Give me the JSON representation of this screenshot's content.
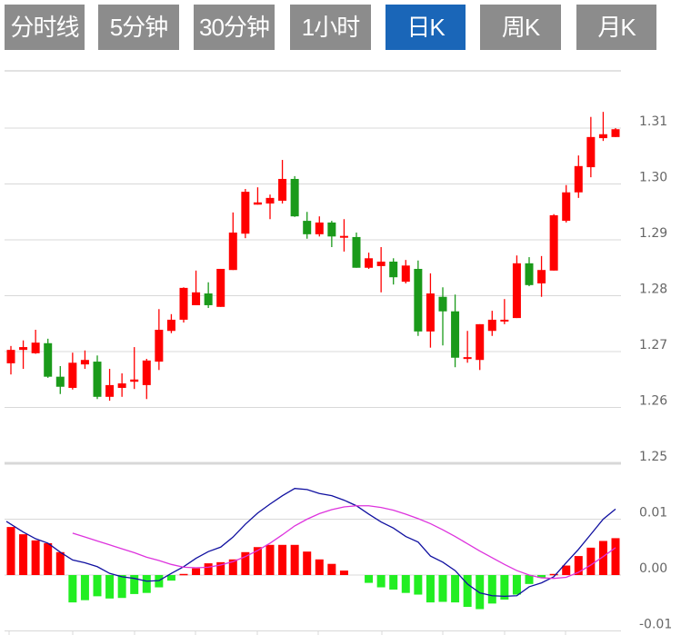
{
  "tabs": [
    {
      "label": "分时线",
      "active": false
    },
    {
      "label": "5分钟",
      "active": false
    },
    {
      "label": "30分钟",
      "active": false
    },
    {
      "label": "1小时",
      "active": false
    },
    {
      "label": "日K",
      "active": true
    },
    {
      "label": "周K",
      "active": false
    },
    {
      "label": "月K",
      "active": false
    }
  ],
  "colors": {
    "tab_bg": "#8c8c8c",
    "tab_active_bg": "#1a66b8",
    "up": "#ff0000",
    "down": "#1a9a1a",
    "hist_up": "#ff0000",
    "hist_down": "#22ee22",
    "dif": "#1010a0",
    "dea": "#dd33dd",
    "grid": "#d8d8d8"
  },
  "chart_data": [
    {
      "type": "candlestick",
      "ylim": [
        1.25,
        1.32
      ],
      "yticks": [
        "1.31",
        "1.30",
        "1.29",
        "1.28",
        "1.27",
        "1.26",
        "1.25"
      ],
      "grid": true,
      "ohlc": [
        [
          1.2679,
          1.271,
          1.2659,
          1.2703
        ],
        [
          1.2703,
          1.272,
          1.2669,
          1.2708
        ],
        [
          1.2697,
          1.2739,
          1.2696,
          1.2716
        ],
        [
          1.2715,
          1.2723,
          1.2653,
          1.2655
        ],
        [
          1.2655,
          1.2674,
          1.2624,
          1.2637
        ],
        [
          1.2635,
          1.2698,
          1.2632,
          1.268
        ],
        [
          1.2677,
          1.2702,
          1.2669,
          1.2685
        ],
        [
          1.2682,
          1.2693,
          1.2615,
          1.2619
        ],
        [
          1.2619,
          1.2669,
          1.2612,
          1.264
        ],
        [
          1.2635,
          1.2661,
          1.2619,
          1.2643
        ],
        [
          1.2646,
          1.2708,
          1.2633,
          1.265
        ],
        [
          1.264,
          1.2687,
          1.2615,
          1.2684
        ],
        [
          1.2682,
          1.2776,
          1.2667,
          1.2739
        ],
        [
          1.2737,
          1.2767,
          1.2733,
          1.2757
        ],
        [
          1.2757,
          1.2815,
          1.2752,
          1.2814
        ],
        [
          1.2783,
          1.2845,
          1.2783,
          1.2806
        ],
        [
          1.2804,
          1.2824,
          1.2778,
          1.2783
        ],
        [
          1.278,
          1.2848,
          1.278,
          1.2848
        ],
        [
          1.2846,
          1.2949,
          1.2846,
          1.2913
        ],
        [
          1.2911,
          1.2991,
          1.2903,
          1.2986
        ],
        [
          1.2963,
          1.2994,
          1.2963,
          1.2967
        ],
        [
          1.2965,
          1.2981,
          1.2937,
          1.2975
        ],
        [
          1.297,
          1.3043,
          1.2965,
          1.3009
        ],
        [
          1.3009,
          1.3014,
          1.2941,
          1.2942
        ],
        [
          1.2934,
          1.295,
          1.2902,
          1.291
        ],
        [
          1.291,
          1.2942,
          1.2906,
          1.2931
        ],
        [
          1.2931,
          1.2934,
          1.2887,
          1.2906
        ],
        [
          1.2905,
          1.2937,
          1.2879,
          1.2907
        ],
        [
          1.2905,
          1.2913,
          1.285,
          1.285
        ],
        [
          1.285,
          1.2877,
          1.2848,
          1.2867
        ],
        [
          1.2853,
          1.2887,
          1.2806,
          1.2861
        ],
        [
          1.2861,
          1.2867,
          1.282,
          1.2833
        ],
        [
          1.2825,
          1.2864,
          1.2822,
          1.2854
        ],
        [
          1.2848,
          1.2863,
          1.2728,
          1.2736
        ],
        [
          1.2736,
          1.284,
          1.2707,
          1.2804
        ],
        [
          1.2798,
          1.2815,
          1.2711,
          1.2772
        ],
        [
          1.2772,
          1.2802,
          1.2672,
          1.2689
        ],
        [
          1.2689,
          1.2737,
          1.268,
          1.269
        ],
        [
          1.2685,
          1.2749,
          1.2667,
          1.2749
        ],
        [
          1.2737,
          1.2773,
          1.2728,
          1.2757
        ],
        [
          1.2754,
          1.2794,
          1.2749,
          1.2757
        ],
        [
          1.276,
          1.2872,
          1.276,
          1.2858
        ],
        [
          1.2858,
          1.2869,
          1.2817,
          1.2819
        ],
        [
          1.2822,
          1.2871,
          1.2798,
          1.2846
        ],
        [
          1.2845,
          1.2946,
          1.2845,
          1.2944
        ],
        [
          1.2934,
          1.2998,
          1.2931,
          1.2985
        ],
        [
          1.2985,
          1.3051,
          1.2975,
          1.3032
        ],
        [
          1.303,
          1.312,
          1.3012,
          1.3084
        ],
        [
          1.3082,
          1.3129,
          1.3077,
          1.3089
        ],
        [
          1.3084,
          1.31,
          1.3084,
          1.3098
        ]
      ]
    },
    {
      "type": "bar+line",
      "ylim": [
        -0.01,
        0.012
      ],
      "yticks": [
        "0.01",
        "0.00",
        "-0.01"
      ],
      "grid": true,
      "histogram": [
        0.0086,
        0.0073,
        0.0062,
        0.0057,
        0.0041,
        -0.0049,
        -0.0045,
        -0.0038,
        -0.0042,
        -0.0041,
        -0.0034,
        -0.0032,
        -0.0022,
        -0.001,
        0.0002,
        0.0012,
        0.0021,
        0.0023,
        0.0028,
        0.0041,
        0.005,
        0.0054,
        0.0054,
        0.0054,
        0.0042,
        0.0028,
        0.002,
        0.0008,
        0,
        -0.0014,
        -0.0022,
        -0.0026,
        -0.0032,
        -0.0035,
        -0.0049,
        -0.0048,
        -0.0049,
        -0.0057,
        -0.0061,
        -0.0051,
        -0.0044,
        -0.0035,
        -0.0016,
        -0.0005,
        0.0002,
        0.0017,
        0.0034,
        0.0049,
        0.0061,
        0.0066
      ],
      "dif": [
        0.0096,
        0.0077,
        0.0065,
        0.0057,
        0.0041,
        0.0027,
        0.0022,
        0.0015,
        0.0003,
        -0.0003,
        -0.0006,
        -0.0011,
        -0.001,
        0.0003,
        0.0015,
        0.003,
        0.0042,
        0.005,
        0.0068,
        0.0091,
        0.0111,
        0.0127,
        0.0142,
        0.0155,
        0.0153,
        0.0146,
        0.0142,
        0.0134,
        0.0124,
        0.0109,
        0.0095,
        0.0084,
        0.0069,
        0.0059,
        0.0034,
        0.0023,
        0.0008,
        -0.0016,
        -0.0032,
        -0.0037,
        -0.0038,
        -0.0037,
        -0.0021,
        -0.0014,
        -0.0003,
        0.0022,
        0.0046,
        0.0073,
        0.01,
        0.0118
      ],
      "dea": [
        null,
        null,
        null,
        null,
        null,
        0.0075,
        0.0068,
        0.0061,
        0.0054,
        0.0047,
        0.004,
        0.0032,
        0.0026,
        0.0019,
        0.0014,
        0.0013,
        0.0014,
        0.0018,
        0.0024,
        0.0033,
        0.0044,
        0.0057,
        0.0072,
        0.0088,
        0.01,
        0.011,
        0.0117,
        0.0122,
        0.0124,
        0.0124,
        0.0121,
        0.0116,
        0.0109,
        0.0101,
        0.0092,
        0.0081,
        0.0069,
        0.0056,
        0.0043,
        0.0031,
        0.0019,
        0.0008,
        0.0,
        -0.0005,
        -0.0006,
        -0.0004,
        0.0005,
        0.0018,
        0.0033,
        0.0049
      ]
    }
  ]
}
